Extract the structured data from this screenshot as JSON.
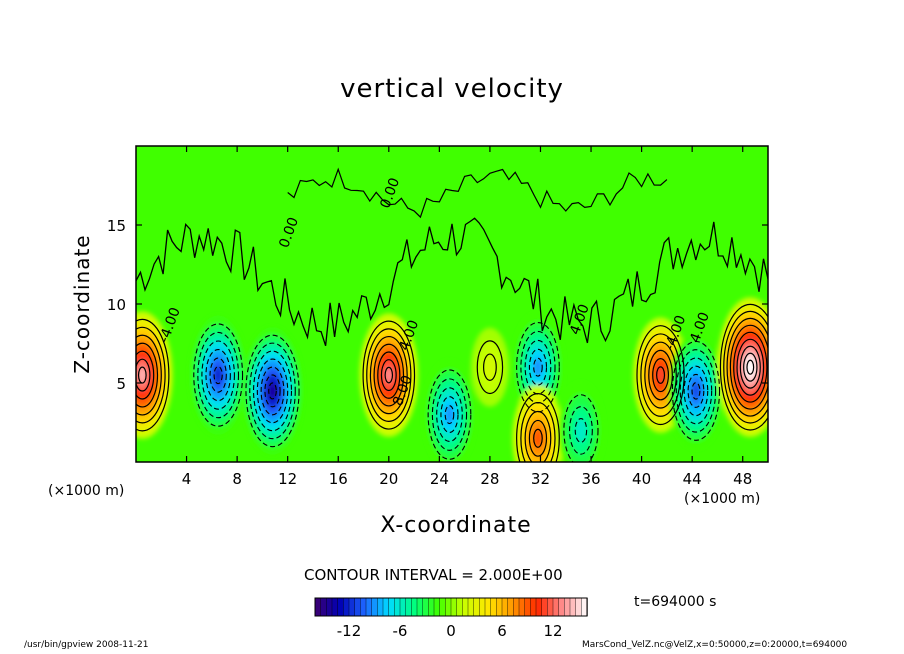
{
  "chart_data": {
    "type": "heatmap",
    "title": "vertical velocity",
    "xlabel": "X-coordinate",
    "ylabel": "Z-coordinate",
    "x_unit": "(×1000 m)",
    "xlim": [
      0,
      50
    ],
    "ylim": [
      0,
      20
    ],
    "x_ticks": [
      4,
      8,
      12,
      16,
      20,
      24,
      28,
      32,
      36,
      40,
      44,
      48
    ],
    "y_ticks": [
      5,
      10,
      15
    ],
    "contour_interval_text": "CONTOUR INTERVAL = 2.000E+00",
    "contour_labels": [
      "0.00",
      "-4.00",
      "4.00",
      "8.00"
    ],
    "colorbar": {
      "range": [
        -16,
        16
      ],
      "ticks": [
        -12,
        -6,
        0,
        6,
        12
      ],
      "colors": [
        "#3d0070",
        "#0000b4",
        "#1e64ff",
        "#00dcff",
        "#00ff80",
        "#40ff00",
        "#c8ff00",
        "#ffe600",
        "#ff9600",
        "#ff2800",
        "#ff8c8c",
        "#ffffff"
      ]
    },
    "blobs": [
      {
        "x": 0.5,
        "z": 5.5,
        "w": 14
      },
      {
        "x": 6.5,
        "z": 5.5,
        "w": -12
      },
      {
        "x": 10.8,
        "z": 4.5,
        "w": -14
      },
      {
        "x": 20.0,
        "z": 5.5,
        "w": 13
      },
      {
        "x": 24.8,
        "z": 3.0,
        "w": -9
      },
      {
        "x": 28.0,
        "z": 6.0,
        "w": 2
      },
      {
        "x": 31.8,
        "z": 6.0,
        "w": -9
      },
      {
        "x": 31.8,
        "z": 1.5,
        "w": 9
      },
      {
        "x": 35.2,
        "z": 2.0,
        "w": -6
      },
      {
        "x": 41.5,
        "z": 5.5,
        "w": 11
      },
      {
        "x": 44.3,
        "z": 4.5,
        "w": -11
      },
      {
        "x": 48.6,
        "z": 6.0,
        "w": 17
      }
    ],
    "time_label": "t=694000 s"
  },
  "footer_left": "/usr/bin/gpview   2008-11-21",
  "footer_right": "MarsCond_VelZ.nc@VelZ,x=0:50000,z=0:20000,t=694000"
}
